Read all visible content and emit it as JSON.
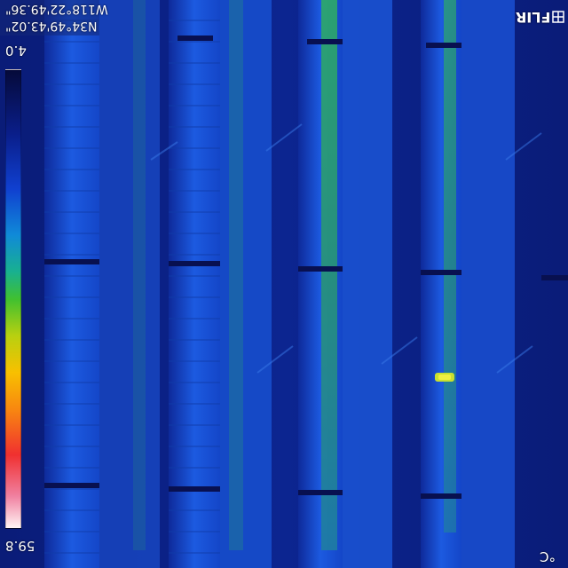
{
  "overlay": {
    "gps_latitude": "N34°49'43.02\"",
    "gps_longitude": "W118°22'49.36\"",
    "brand": "FLIR",
    "temp_max": "4.0",
    "temp_min": "59.8",
    "temp_unit": "°C"
  },
  "colors": {
    "background": "#0a1a6a",
    "panel_blue": "#1a4fd0",
    "gap_dark": "#0a1a70",
    "warm_strip": "#2ab54a",
    "hotspot": "#e8f020"
  },
  "scale": {
    "palette": "iron-rainbow",
    "orientation": "vertical"
  }
}
